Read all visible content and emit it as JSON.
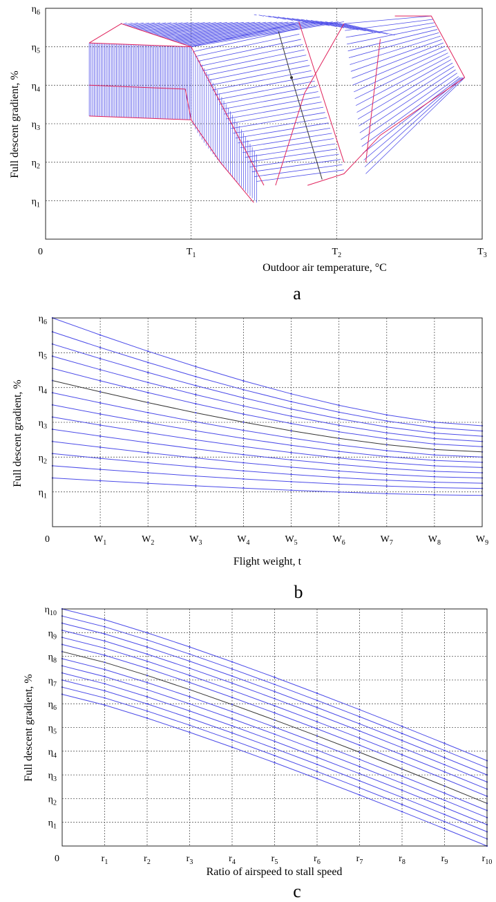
{
  "colors": {
    "curve": "#4a4ae8",
    "boundary": "#e0205a",
    "mid": "#333333",
    "grid": "#555555"
  },
  "chart_data": [
    {
      "type": "line",
      "panel_label": "a",
      "xlabel": "Outdoor air temperature, °C",
      "ylabel": "Full descent gradient, %",
      "x_origin_label": "0",
      "x_ticks": [
        {
          "base": "T",
          "sub": "1",
          "v": 1
        },
        {
          "base": "T",
          "sub": "2",
          "v": 2
        },
        {
          "base": "T",
          "sub": "3",
          "v": 3
        }
      ],
      "y_ticks": [
        {
          "base": "η",
          "sub": "1",
          "v": 1
        },
        {
          "base": "η",
          "sub": "2",
          "v": 2
        },
        {
          "base": "η",
          "sub": "3",
          "v": 3
        },
        {
          "base": "η",
          "sub": "4",
          "v": 4
        },
        {
          "base": "η",
          "sub": "5",
          "v": 5
        },
        {
          "base": "η",
          "sub": "6",
          "v": 6
        }
      ],
      "xlim": [
        0,
        3
      ],
      "ylim": [
        0,
        6
      ],
      "boundaries": [
        {
          "name": "low_left_upper",
          "x": [
            0.3,
            0.96
          ],
          "y": [
            4.0,
            3.9
          ]
        },
        {
          "name": "low_left_lower",
          "x": [
            0.3,
            1.0
          ],
          "y": [
            3.2,
            3.1
          ]
        },
        {
          "name": "low_left_low_drop",
          "x": [
            0.96,
            1.0,
            1.2,
            1.43
          ],
          "y": [
            3.9,
            3.1,
            2.0,
            0.95
          ]
        },
        {
          "name": "top_left_front",
          "x": [
            0.3,
            0.52,
            1.0
          ],
          "y": [
            5.1,
            5.6,
            5.0
          ]
        },
        {
          "name": "top_left_back",
          "x": [
            0.3,
            1.0
          ],
          "y": [
            5.1,
            5.0
          ]
        },
        {
          "name": "mid_left_edge",
          "x": [
            1.0,
            1.5
          ],
          "y": [
            5.0,
            1.4
          ]
        },
        {
          "name": "mid_right_edge",
          "x": [
            1.74,
            2.05
          ],
          "y": [
            5.65,
            2.0
          ]
        },
        {
          "name": "right_left_edge",
          "x": [
            2.05,
            1.78,
            1.58
          ],
          "y": [
            5.6,
            3.8,
            1.4
          ]
        },
        {
          "name": "right_right_edge",
          "x": [
            2.4,
            2.65,
            2.88
          ],
          "y": [
            5.8,
            5.8,
            4.2
          ]
        },
        {
          "name": "right_mid_edge",
          "x": [
            2.3,
            2.2
          ],
          "y": [
            5.2,
            2.0
          ]
        },
        {
          "name": "right_bottom",
          "x": [
            1.8,
            2.05,
            2.3,
            2.88
          ],
          "y": [
            1.4,
            1.7,
            2.7,
            4.2
          ]
        }
      ],
      "mid_curve": {
        "x": [
          1.6,
          1.69,
          1.9
        ],
        "y": [
          5.4,
          4.2,
          1.55
        ]
      }
    },
    {
      "type": "line",
      "panel_label": "b",
      "xlabel": "Flight weight, t",
      "ylabel": "Full descent gradient, %",
      "x_origin_label": "0",
      "x_ticks": [
        {
          "base": "W",
          "sub": "1",
          "v": 1
        },
        {
          "base": "W",
          "sub": "2",
          "v": 2
        },
        {
          "base": "W",
          "sub": "3",
          "v": 3
        },
        {
          "base": "W",
          "sub": "4",
          "v": 4
        },
        {
          "base": "W",
          "sub": "5",
          "v": 5
        },
        {
          "base": "W",
          "sub": "6",
          "v": 6
        },
        {
          "base": "W",
          "sub": "7",
          "v": 7
        },
        {
          "base": "W",
          "sub": "8",
          "v": 8
        },
        {
          "base": "W",
          "sub": "9",
          "v": 9
        }
      ],
      "y_ticks": [
        {
          "base": "η",
          "sub": "1",
          "v": 1
        },
        {
          "base": "η",
          "sub": "2",
          "v": 2
        },
        {
          "base": "η",
          "sub": "3",
          "v": 3
        },
        {
          "base": "η",
          "sub": "4",
          "v": 4
        },
        {
          "base": "η",
          "sub": "5",
          "v": 5
        },
        {
          "base": "η",
          "sub": "6",
          "v": 6
        }
      ],
      "xlim": [
        0,
        9
      ],
      "ylim": [
        0,
        6
      ],
      "curve_start": [
        6.0,
        5.6,
        5.25,
        4.9,
        4.55,
        4.2,
        3.85,
        3.5,
        3.15,
        2.8,
        2.45,
        2.1,
        1.75,
        1.4
      ],
      "curve_end": [
        2.9,
        2.75,
        2.6,
        2.45,
        2.3,
        2.15,
        2.0,
        1.85,
        1.7,
        1.55,
        1.4,
        1.25,
        1.1,
        0.9
      ],
      "mid_index": 5
    },
    {
      "type": "line",
      "panel_label": "c",
      "xlabel": "Ratio of airspeed to stall speed",
      "ylabel": "Full descent gradient, %",
      "x_origin_label": "0",
      "x_ticks": [
        {
          "base": "r",
          "sub": "1",
          "v": 1
        },
        {
          "base": "r",
          "sub": "2",
          "v": 2
        },
        {
          "base": "r",
          "sub": "3",
          "v": 3
        },
        {
          "base": "r",
          "sub": "4",
          "v": 4
        },
        {
          "base": "r",
          "sub": "5",
          "v": 5
        },
        {
          "base": "r",
          "sub": "6",
          "v": 6
        },
        {
          "base": "r",
          "sub": "7",
          "v": 7
        },
        {
          "base": "r",
          "sub": "8",
          "v": 8
        },
        {
          "base": "r",
          "sub": "9",
          "v": 9
        },
        {
          "base": "r",
          "sub": "10",
          "v": 10
        }
      ],
      "y_ticks": [
        {
          "base": "η",
          "sub": "1",
          "v": 1
        },
        {
          "base": "η",
          "sub": "2",
          "v": 2
        },
        {
          "base": "η",
          "sub": "3",
          "v": 3
        },
        {
          "base": "η",
          "sub": "4",
          "v": 4
        },
        {
          "base": "η",
          "sub": "5",
          "v": 5
        },
        {
          "base": "η",
          "sub": "6",
          "v": 6
        },
        {
          "base": "η",
          "sub": "7",
          "v": 7
        },
        {
          "base": "η",
          "sub": "8",
          "v": 8
        },
        {
          "base": "η",
          "sub": "9",
          "v": 9
        },
        {
          "base": "η",
          "sub": "10",
          "v": 10
        }
      ],
      "xlim": [
        0,
        10
      ],
      "ylim": [
        0,
        10
      ],
      "curve_start": [
        10.0,
        9.7,
        9.4,
        9.1,
        8.8,
        8.5,
        8.2,
        7.9,
        7.6,
        7.3,
        7.0,
        6.7,
        6.4
      ],
      "curve_drop": 6.4,
      "mid_index": 6
    }
  ]
}
